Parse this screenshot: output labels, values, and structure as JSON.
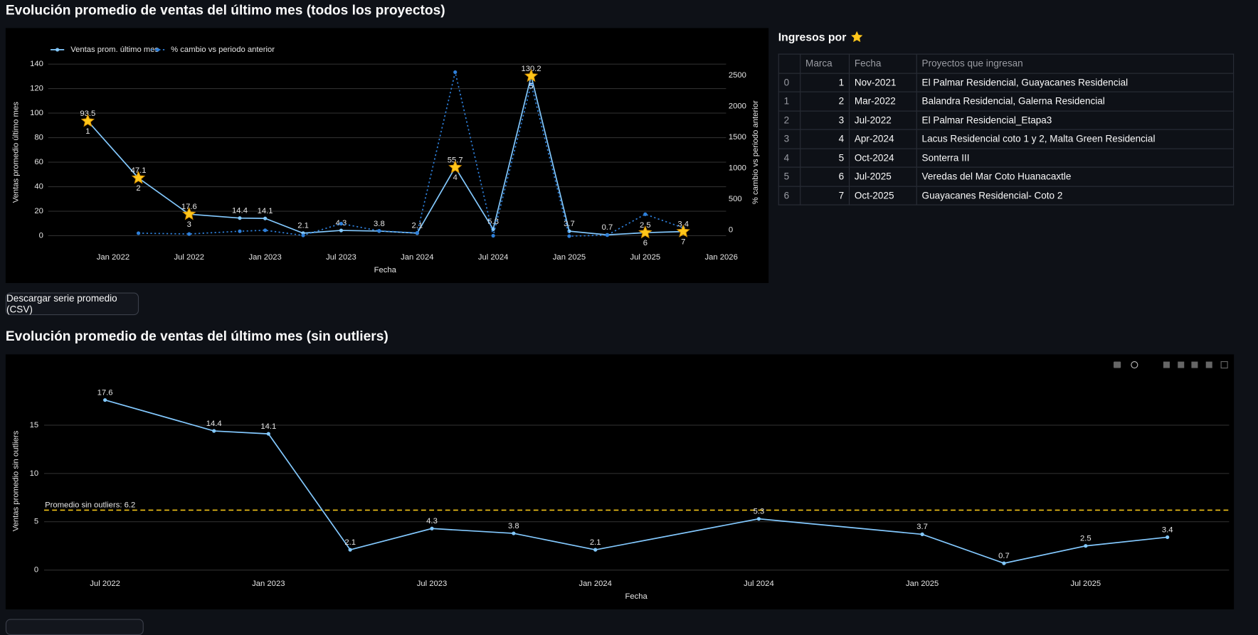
{
  "header_1": "Evolución promedio de ventas del último mes (todos los proyectos)",
  "header_2": "Evolución promedio de ventas del último mes (sin outliers)",
  "download_button": "Descargar serie promedio (CSV)",
  "table": {
    "title": "Ingresos por",
    "columns": [
      "Marca",
      "Fecha",
      "Proyectos que ingresan"
    ],
    "rows": [
      [
        0,
        1,
        "Nov-2021",
        "El Palmar Residencial, Guayacanes Residencial"
      ],
      [
        1,
        2,
        "Mar-2022",
        "Balandra Residencial, Galerna Residencial"
      ],
      [
        2,
        3,
        "Jul-2022",
        "El Palmar Residencial_Etapa3"
      ],
      [
        3,
        4,
        "Apr-2024",
        "Lacus Residencial coto 1 y 2, Malta Green Residencial"
      ],
      [
        4,
        5,
        "Oct-2024",
        "Sonterra III"
      ],
      [
        5,
        6,
        "Jul-2025",
        "Veredas del Mar Coto Huanacaxtle"
      ],
      [
        6,
        7,
        "Oct-2025",
        "Guayacanes Residencial- Coto 2"
      ]
    ]
  },
  "chart_data": [
    {
      "type": "line",
      "x_label": "Fecha",
      "y_label": "Ventas promedio último mes",
      "y2_label": "% cambio vs periodo anterior",
      "x": [
        "2021-11",
        "2022-03",
        "2022-07",
        "2022-11",
        "2023-01",
        "2023-04",
        "2023-07",
        "2023-10",
        "2024-01",
        "2024-04",
        "2024-07",
        "2024-10",
        "2025-01",
        "2025-04",
        "2025-07",
        "2025-10"
      ],
      "series": [
        {
          "name": "Ventas prom. último mes",
          "color": "#83c9ff",
          "line_style": "solid",
          "data_labels": true,
          "values": [
            93.5,
            47.1,
            17.6,
            14.4,
            14.1,
            2.1,
            4.3,
            3.8,
            2.1,
            55.7,
            5.3,
            130.2,
            3.7,
            0.7,
            2.5,
            3.4
          ]
        },
        {
          "name": "% cambio vs periodo anterior",
          "color": "#2e7fd9",
          "line_style": "dotted",
          "axis": "y2",
          "data_labels": false,
          "values": [
            null,
            -49.6,
            -62.6,
            -18.2,
            -2.1,
            -85.1,
            104.8,
            -11.6,
            -44.7,
            2552,
            -90.5,
            2357,
            -97.2,
            -81.1,
            257.1,
            36
          ]
        }
      ],
      "stars": {
        "x": [
          "2021-11",
          "2022-03",
          "2022-07",
          "2024-04",
          "2024-10",
          "2025-07",
          "2025-10"
        ],
        "values": [
          93.5,
          47.1,
          17.6,
          55.7,
          130.2,
          2.5,
          3.4
        ],
        "labels": [
          1,
          2,
          3,
          4,
          5,
          6,
          7
        ],
        "color": "#ffc61a"
      },
      "xlim": [
        "2021-08",
        "2026-01"
      ],
      "xticks": [
        {
          "value": "2022-01",
          "label": "Jan 2022"
        },
        {
          "value": "2022-07",
          "label": "Jul 2022"
        },
        {
          "value": "2023-01",
          "label": "Jan 2023"
        },
        {
          "value": "2023-07",
          "label": "Jul 2023"
        },
        {
          "value": "2024-01",
          "label": "Jan 2024"
        },
        {
          "value": "2024-07",
          "label": "Jul 2024"
        },
        {
          "value": "2025-01",
          "label": "Jan 2025"
        },
        {
          "value": "2025-07",
          "label": "Jul 2025"
        },
        {
          "value": "2026-01",
          "label": "Jan 2026"
        }
      ],
      "ylim": [
        -7.2,
        146.5
      ],
      "yticks": [
        0,
        20,
        40,
        60,
        80,
        100,
        120,
        140
      ],
      "y2lim": [
        -233,
        2811
      ],
      "y2ticks": [
        0,
        500,
        1000,
        1500,
        2000,
        2500
      ],
      "grid": true,
      "legend": "top-left"
    },
    {
      "type": "line",
      "x_label": "Fecha",
      "y_label": "Ventas promedio sin outliers",
      "x": [
        "2022-07",
        "2022-11",
        "2023-01",
        "2023-04",
        "2023-07",
        "2023-10",
        "2024-01",
        "2024-07",
        "2025-01",
        "2025-04",
        "2025-07",
        "2025-10"
      ],
      "series": [
        {
          "color": "#83c9ff",
          "line_style": "solid",
          "data_labels": true,
          "values": [
            17.6,
            14.4,
            14.1,
            2.1,
            4.3,
            3.8,
            2.1,
            5.3,
            3.7,
            0.7,
            2.5,
            3.4
          ]
        }
      ],
      "hline": {
        "value": 6.2,
        "label": "Promedio sin outliers: 6.2",
        "color": "#f5c518"
      },
      "xlim": [
        "2022-05",
        "2025-12"
      ],
      "xticks": [
        {
          "value": "2022-07",
          "label": "Jul 2022"
        },
        {
          "value": "2023-01",
          "label": "Jan 2023"
        },
        {
          "value": "2023-07",
          "label": "Jul 2023"
        },
        {
          "value": "2024-01",
          "label": "Jan 2024"
        },
        {
          "value": "2024-07",
          "label": "Jul 2024"
        },
        {
          "value": "2025-01",
          "label": "Jan 2025"
        },
        {
          "value": "2025-07",
          "label": "Jul 2025"
        }
      ],
      "ylim": [
        -0.5,
        20
      ],
      "yticks": [
        0,
        5,
        10,
        15
      ],
      "grid": true
    }
  ]
}
